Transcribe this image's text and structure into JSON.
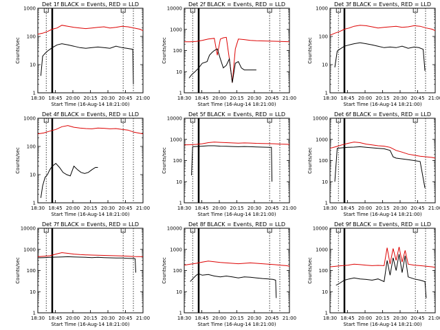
{
  "chart_data": {
    "type": "line",
    "layout": "3x3 grid",
    "ylabel": "Counts/sec",
    "xlabel": "Start Time (16-Aug-14 18:21:00)",
    "x_tick_labels": [
      "18:30",
      "18:45",
      "20:00",
      "20:15",
      "20:30",
      "20:45",
      "21:00"
    ],
    "x_range_minutes": [
      0,
      175
    ],
    "y_scale": "log",
    "markers": {
      "solid_line_x": 24,
      "dotted_lines_x": [
        14,
        142,
        159
      ],
      "top_box_x": [
        14,
        142
      ]
    },
    "series_colors": {
      "Events": "#000000",
      "LLD": "#dd0000"
    },
    "panels": [
      {
        "title": "Det 1f BLACK = Events, RED = LLD",
        "ymin": 1,
        "ymax": 1000,
        "ytick_labels": [
          "1000",
          "100",
          "10",
          "1"
        ],
        "events": {
          "x": [
            5,
            8,
            12,
            16,
            24,
            32,
            40,
            50,
            60,
            70,
            80,
            90,
            100,
            110,
            120,
            130,
            140,
            148,
            158,
            159
          ],
          "y": [
            4,
            20,
            25,
            30,
            40,
            50,
            55,
            50,
            45,
            40,
            38,
            40,
            42,
            40,
            38,
            45,
            40,
            38,
            35,
            2
          ]
        },
        "lld": {
          "x": [
            0,
            8,
            16,
            24,
            32,
            40,
            50,
            60,
            70,
            80,
            90,
            100,
            110,
            120,
            130,
            140,
            150,
            160,
            170,
            175
          ],
          "y": [
            120,
            130,
            150,
            180,
            200,
            250,
            230,
            210,
            200,
            190,
            200,
            210,
            220,
            200,
            210,
            230,
            220,
            200,
            180,
            160
          ]
        }
      },
      {
        "title": "Det 2f BLACK = Events, RED = LLD",
        "ymin": 1,
        "ymax": 10000,
        "ytick_labels": [
          "10000",
          "1000",
          "100",
          "10",
          "1"
        ],
        "events": {
          "x": [
            8,
            12,
            18,
            24,
            30,
            38,
            42,
            46,
            50,
            55,
            60,
            65,
            70,
            75,
            80,
            85,
            90,
            95,
            100,
            110,
            120
          ],
          "y": [
            5,
            7,
            10,
            15,
            25,
            30,
            60,
            80,
            100,
            120,
            40,
            15,
            20,
            40,
            3,
            25,
            30,
            15,
            12,
            12,
            12
          ]
        },
        "lld": {
          "x": [
            0,
            10,
            20,
            30,
            40,
            50,
            55,
            60,
            65,
            70,
            75,
            80,
            85,
            90,
            100,
            110,
            120,
            140,
            160,
            175
          ],
          "y": [
            260,
            260,
            270,
            300,
            350,
            380,
            60,
            350,
            400,
            420,
            40,
            3,
            120,
            350,
            330,
            300,
            290,
            280,
            270,
            260
          ]
        }
      },
      {
        "title": "Det 3f BLACK = Events, RED = LLD",
        "ymin": 1,
        "ymax": 1000,
        "ytick_labels": [
          "1000",
          "100",
          "10",
          "1"
        ],
        "events": {
          "x": [
            8,
            12,
            16,
            24,
            32,
            40,
            50,
            60,
            70,
            80,
            90,
            100,
            110,
            120,
            130,
            140,
            148,
            155,
            158
          ],
          "y": [
            8,
            30,
            35,
            45,
            50,
            55,
            60,
            55,
            50,
            45,
            40,
            42,
            40,
            45,
            38,
            42,
            40,
            35,
            6
          ]
        },
        "lld": {
          "x": [
            0,
            8,
            16,
            24,
            32,
            40,
            50,
            60,
            70,
            80,
            90,
            100,
            110,
            120,
            130,
            140,
            150,
            160,
            170,
            175
          ],
          "y": [
            110,
            130,
            150,
            180,
            200,
            230,
            250,
            240,
            220,
            200,
            210,
            220,
            230,
            210,
            220,
            240,
            230,
            200,
            180,
            160
          ]
        }
      },
      {
        "title": "Det 4f BLACK = Events, RED = LLD",
        "ymin": 1,
        "ymax": 1000,
        "ytick_labels": [
          "1000",
          "100",
          "10",
          "1"
        ],
        "events": {
          "x": [
            5,
            8,
            12,
            16,
            20,
            24,
            30,
            36,
            42,
            48,
            54,
            60,
            66,
            72,
            78,
            84,
            90,
            96,
            100
          ],
          "y": [
            1.5,
            4,
            8,
            10,
            15,
            20,
            25,
            18,
            12,
            10,
            9,
            20,
            15,
            12,
            11,
            12,
            15,
            18,
            18
          ]
        },
        "lld": {
          "x": [
            0,
            10,
            20,
            30,
            40,
            50,
            60,
            70,
            80,
            90,
            100,
            110,
            120,
            130,
            140,
            150,
            160,
            175
          ],
          "y": [
            280,
            300,
            350,
            400,
            500,
            550,
            480,
            450,
            430,
            420,
            450,
            440,
            420,
            430,
            400,
            380,
            320,
            280
          ]
        }
      },
      {
        "title": "Det 5f BLACK = Events, RED = LLD",
        "ymin": 1,
        "ymax": 10000,
        "ytick_labels": [
          "10000",
          "1000",
          "100",
          "10",
          "1"
        ],
        "events": {
          "x": [
            12,
            14,
            20,
            30,
            40,
            50,
            60,
            70,
            80,
            90,
            100,
            110,
            120,
            130,
            140,
            145,
            146
          ],
          "y": [
            20,
            450,
            460,
            480,
            500,
            500,
            480,
            470,
            460,
            450,
            460,
            450,
            440,
            430,
            420,
            420,
            10
          ]
        },
        "lld": {
          "x": [
            0,
            10,
            20,
            30,
            40,
            50,
            60,
            70,
            80,
            90,
            100,
            110,
            120,
            130,
            140,
            150,
            160,
            175
          ],
          "y": [
            550,
            560,
            580,
            620,
            700,
            750,
            720,
            700,
            680,
            660,
            680,
            670,
            650,
            640,
            630,
            620,
            600,
            580
          ]
        }
      },
      {
        "title": "Det 6f BLACK = Events, RED = LLD",
        "ymin": 1,
        "ymax": 10000,
        "ytick_labels": [
          "10000",
          "1000",
          "100",
          "10",
          "1"
        ],
        "events": {
          "x": [
            8,
            12,
            20,
            30,
            40,
            50,
            60,
            70,
            80,
            90,
            100,
            105,
            110,
            120,
            130,
            140,
            150,
            158
          ],
          "y": [
            10,
            380,
            400,
            420,
            430,
            450,
            420,
            400,
            380,
            360,
            300,
            150,
            130,
            120,
            110,
            100,
            90,
            5
          ]
        },
        "lld": {
          "x": [
            0,
            10,
            20,
            30,
            40,
            50,
            60,
            70,
            80,
            90,
            100,
            110,
            120,
            130,
            140,
            150,
            160,
            170,
            175
          ],
          "y": [
            380,
            450,
            550,
            650,
            750,
            700,
            600,
            550,
            500,
            480,
            420,
            300,
            250,
            200,
            180,
            160,
            150,
            140,
            130
          ]
        }
      },
      {
        "title": "Det 7f BLACK = Events, RED = LLD",
        "ymin": 1,
        "ymax": 10000,
        "ytick_labels": [
          "10000",
          "1000",
          "100",
          "10",
          "1"
        ],
        "events": {
          "x": [
            0,
            10,
            20,
            30,
            40,
            50,
            60,
            70,
            80,
            90,
            100,
            110,
            120,
            130,
            140,
            150,
            160,
            162,
            163
          ],
          "y": [
            400,
            410,
            420,
            430,
            440,
            450,
            440,
            430,
            420,
            410,
            420,
            410,
            400,
            395,
            390,
            380,
            370,
            360,
            80
          ]
        },
        "lld": {
          "x": [
            0,
            10,
            20,
            30,
            40,
            50,
            60,
            70,
            80,
            90,
            100,
            110,
            120,
            130,
            140,
            150,
            160,
            175
          ],
          "y": [
            450,
            470,
            500,
            600,
            700,
            650,
            600,
            570,
            550,
            540,
            530,
            520,
            510,
            500,
            490,
            480,
            460,
            450
          ]
        }
      },
      {
        "title": "Det 8f BLACK = Events, RED = LLD",
        "ymin": 1,
        "ymax": 10000,
        "ytick_labels": [
          "10000",
          "1000",
          "100",
          "10",
          "1"
        ],
        "events": {
          "x": [
            10,
            14,
            20,
            24,
            30,
            40,
            50,
            60,
            70,
            80,
            90,
            100,
            110,
            120,
            130,
            140,
            148,
            152,
            153
          ],
          "y": [
            30,
            40,
            60,
            70,
            60,
            65,
            55,
            50,
            55,
            50,
            45,
            50,
            48,
            45,
            42,
            40,
            38,
            35,
            5
          ]
        },
        "lld": {
          "x": [
            0,
            10,
            20,
            30,
            40,
            50,
            60,
            70,
            80,
            90,
            100,
            110,
            120,
            130,
            140,
            150,
            160,
            170,
            175
          ],
          "y": [
            180,
            200,
            220,
            250,
            280,
            260,
            240,
            230,
            220,
            210,
            220,
            230,
            220,
            210,
            200,
            190,
            180,
            170,
            160
          ]
        }
      },
      {
        "title": "Det 9f BLACK = Events, RED = LLD",
        "ymin": 1,
        "ymax": 10000,
        "ytick_labels": [
          "10000",
          "1000",
          "100",
          "10",
          "1"
        ],
        "events": {
          "x": [
            10,
            16,
            24,
            32,
            40,
            50,
            60,
            70,
            80,
            90,
            95,
            100,
            105,
            110,
            115,
            120,
            125,
            130,
            140,
            150,
            158,
            160
          ],
          "y": [
            20,
            25,
            35,
            40,
            45,
            40,
            38,
            35,
            40,
            30,
            300,
            60,
            400,
            100,
            600,
            80,
            500,
            50,
            40,
            35,
            30,
            5
          ]
        },
        "lld": {
          "x": [
            0,
            10,
            20,
            30,
            40,
            50,
            60,
            70,
            80,
            90,
            95,
            100,
            105,
            110,
            115,
            120,
            125,
            130,
            140,
            150,
            160,
            170,
            175
          ],
          "y": [
            150,
            160,
            170,
            180,
            200,
            190,
            180,
            170,
            175,
            170,
            1200,
            200,
            1100,
            300,
            1300,
            250,
            900,
            200,
            180,
            170,
            160,
            150,
            140
          ]
        }
      }
    ]
  }
}
